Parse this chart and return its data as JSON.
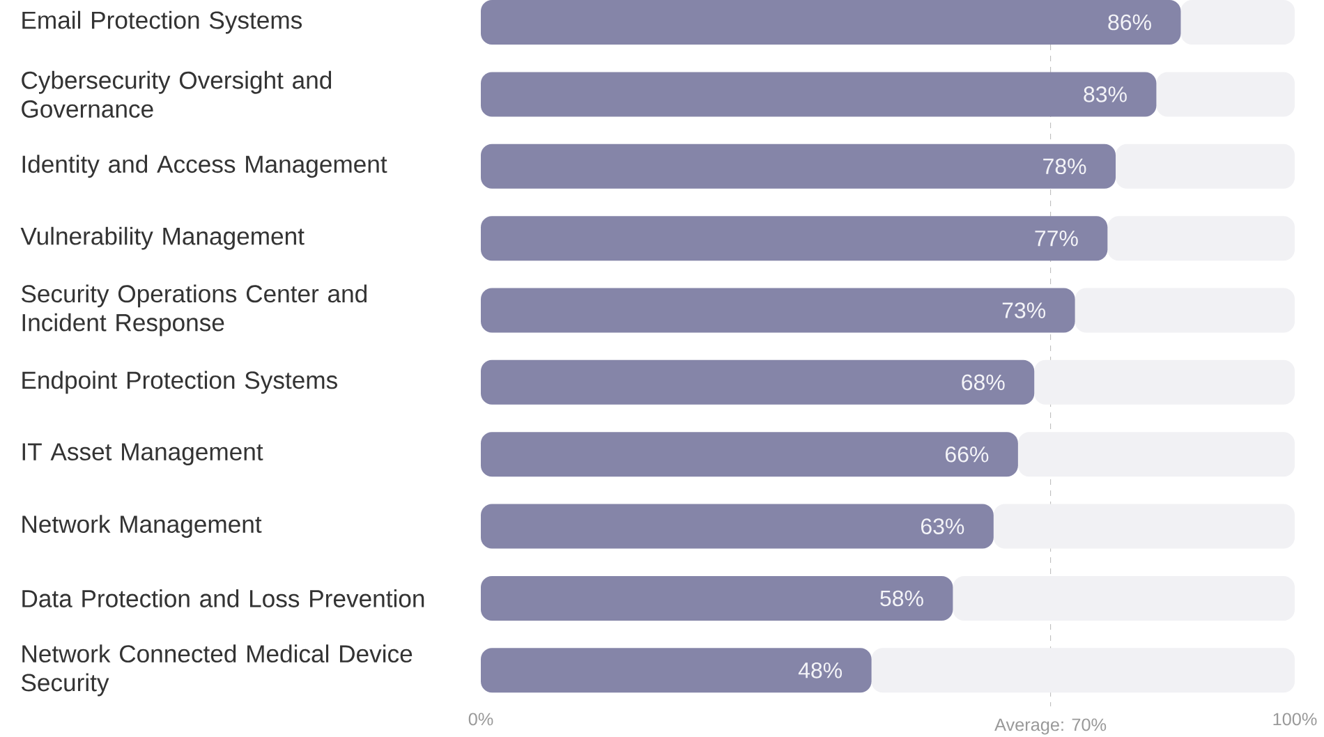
{
  "chart_data": {
    "type": "bar",
    "orientation": "horizontal",
    "stacked": true,
    "categories": [
      "Email Protection Systems",
      "Cybersecurity Oversight and Governance",
      "Identity and Access Management",
      "Vulnerability Management",
      "Security Operations Center and Incident Response",
      "Endpoint Protection Systems",
      "IT Asset Management",
      "Network Management",
      "Data Protection and Loss Prevention",
      "Network Connected Medical Device Security"
    ],
    "series": [
      {
        "color": "#8585a8",
        "values": [
          86,
          83,
          78,
          77,
          73,
          68,
          66,
          63,
          58,
          48
        ],
        "value_labels": [
          "86%",
          "83%",
          "78%",
          "77%",
          "73%",
          "68%",
          "66%",
          "63%",
          "58%",
          "48%"
        ]
      },
      {
        "color": "#f1f1f4",
        "values": [
          14,
          17,
          22,
          23,
          27,
          32,
          34,
          37,
          42,
          52
        ]
      }
    ],
    "xlim": [
      0,
      100
    ],
    "xticks": [
      {
        "value": 0,
        "label": "0%"
      },
      {
        "value": 100,
        "label": "100%"
      }
    ],
    "ref_lines": [
      {
        "axis": "x",
        "value": 70,
        "label": "Average: 70%",
        "color": "#bbbbbb",
        "line_style": "dashed"
      }
    ]
  }
}
